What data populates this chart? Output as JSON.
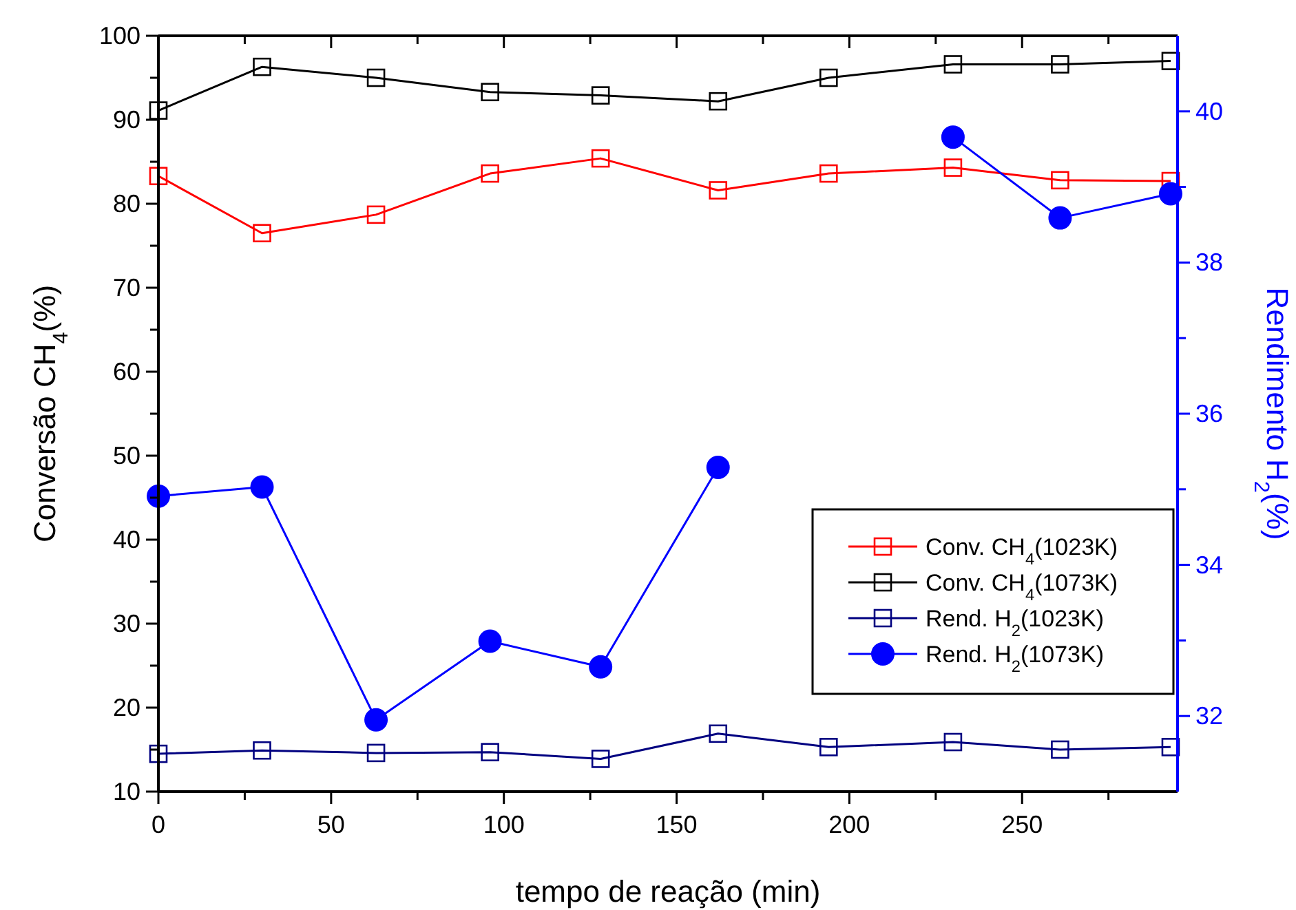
{
  "chart_data": {
    "type": "line",
    "xlabel": "tempo de reação (min)",
    "ylabel": "Conversão CH$_{4}$(%)",
    "y2label": "Rendimento H$_{2}$(%)",
    "x": [
      0,
      30,
      63,
      96,
      128,
      162,
      194,
      230,
      261,
      293
    ],
    "series": [
      {
        "name": "Conv. CH$_{4}$(1023K)",
        "color": "#ff0000",
        "marker": "square",
        "values": [
          83.3,
          76.5,
          78.7,
          83.6,
          85.4,
          81.6,
          83.6,
          84.3,
          82.8,
          82.7
        ]
      },
      {
        "name": "Conv. CH$_{4}$(1073K)",
        "color": "#000000",
        "marker": "square",
        "values": [
          91.1,
          96.3,
          95.0,
          93.3,
          92.9,
          92.2,
          95.0,
          96.6,
          96.6,
          97.0
        ]
      },
      {
        "name": "Rend. H$_{2}$(1023K)",
        "color": "#000080",
        "marker": "square",
        "values": [
          14.5,
          14.9,
          14.6,
          14.7,
          13.9,
          16.9,
          15.3,
          15.9,
          15.0,
          15.3
        ]
      },
      {
        "name": "Rend. H$_{2}$(1073K)",
        "color": "#0000ff",
        "marker": "circle",
        "axis": "y2",
        "values": [
          34.91,
          35.03,
          31.95,
          32.99,
          32.65,
          35.29,
          null,
          39.66,
          38.59,
          38.91
        ]
      }
    ],
    "xlim": [
      0,
      295
    ],
    "xticks": [
      0,
      {
        "value": 25,
        "label": null
      },
      50,
      {
        "value": 75,
        "label": null
      },
      100,
      {
        "value": 125,
        "label": null
      },
      150,
      {
        "value": 175,
        "label": null
      },
      200,
      {
        "value": 225,
        "label": null
      },
      250,
      {
        "value": 275,
        "label": null
      }
    ],
    "ylim": [
      10,
      100
    ],
    "yticks": [
      10,
      {
        "value": 15,
        "label": null
      },
      20,
      {
        "value": 25,
        "label": null
      },
      30,
      {
        "value": 35,
        "label": null
      },
      40,
      {
        "value": 45,
        "label": null
      },
      50,
      {
        "value": 55,
        "label": null
      },
      60,
      {
        "value": 65,
        "label": null
      },
      70,
      {
        "value": 75,
        "label": null
      },
      80,
      {
        "value": 85,
        "label": null
      },
      90,
      {
        "value": 95,
        "label": null
      },
      100
    ],
    "y2lim": [
      31,
      41
    ],
    "y2ticks": [
      32,
      {
        "value": 33,
        "label": null
      },
      34,
      {
        "value": 35,
        "label": null
      },
      36,
      {
        "value": 37,
        "label": null
      },
      38,
      {
        "value": 39,
        "label": null
      },
      40
    ],
    "grid": false,
    "legend": "right"
  }
}
